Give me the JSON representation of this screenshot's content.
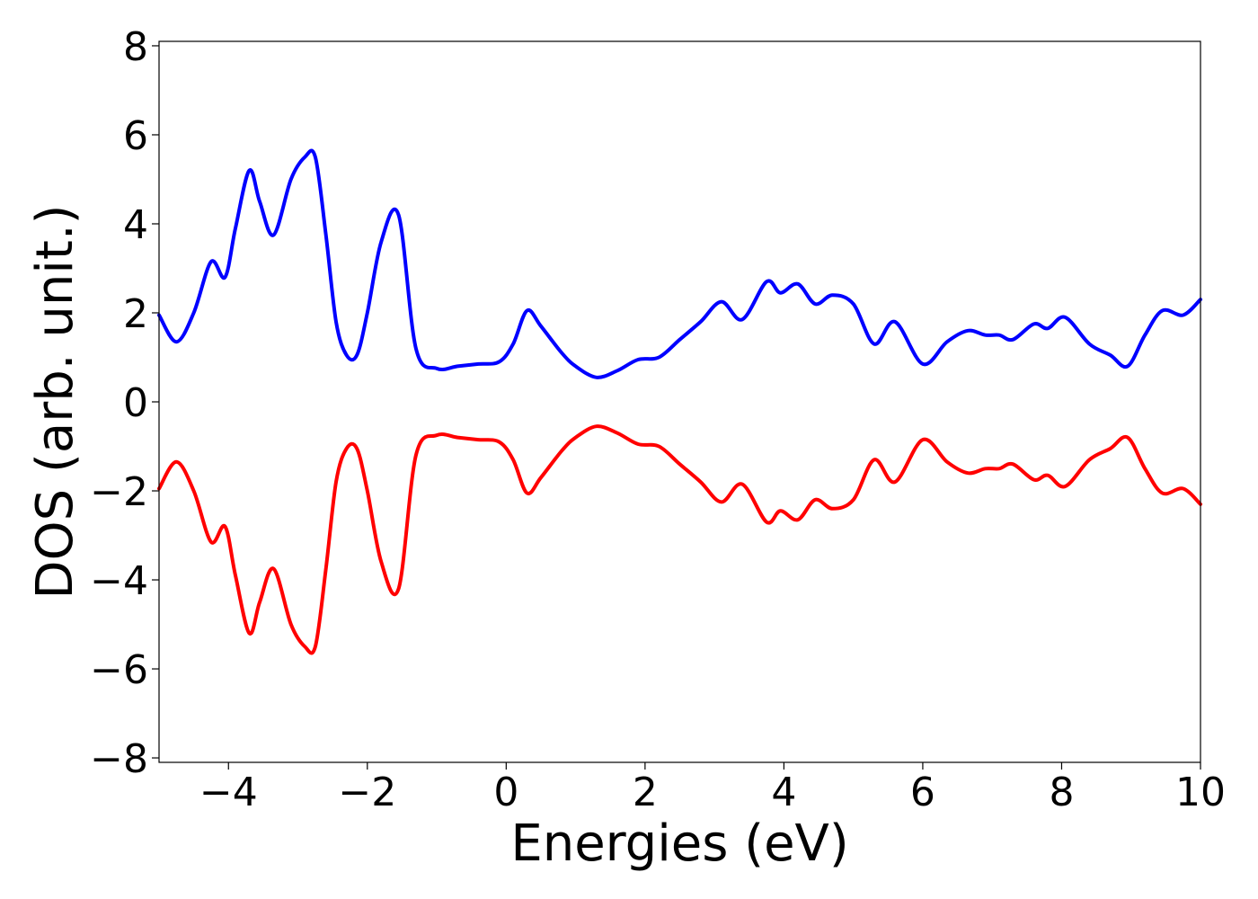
{
  "chart_data": {
    "type": "line",
    "xlabel": "Energies (eV)",
    "ylabel": "DOS (arb. unit.)",
    "xlim": [
      -5,
      10
    ],
    "ylim": [
      -8.1,
      8.1
    ],
    "x_ticks": [
      -4,
      -2,
      0,
      2,
      4,
      6,
      8,
      10
    ],
    "y_ticks": [
      -8,
      -6,
      -4,
      -2,
      0,
      2,
      4,
      6,
      8
    ],
    "x_tick_labels": [
      "−4",
      "−2",
      "0",
      "2",
      "4",
      "6",
      "8",
      "10"
    ],
    "y_tick_labels": [
      "−8",
      "−6",
      "−4",
      "−2",
      "0",
      "2",
      "4",
      "6",
      "8"
    ],
    "grid": false,
    "legend": "none",
    "x": [
      -5.0,
      -4.75,
      -4.5,
      -4.25,
      -4.05,
      -3.9,
      -3.7,
      -3.55,
      -3.35,
      -3.1,
      -2.9,
      -2.75,
      -2.6,
      -2.45,
      -2.3,
      -2.15,
      -2.0,
      -1.8,
      -1.55,
      -1.3,
      -1.0,
      -0.7,
      -0.4,
      -0.1,
      0.1,
      0.3,
      0.5,
      0.8,
      1.0,
      1.3,
      1.6,
      1.9,
      2.2,
      2.5,
      2.8,
      3.1,
      3.4,
      3.75,
      3.95,
      4.2,
      4.45,
      4.7,
      5.0,
      5.3,
      5.6,
      6.0,
      6.35,
      6.65,
      6.9,
      7.1,
      7.3,
      7.6,
      7.8,
      8.05,
      8.4,
      8.7,
      8.95,
      9.2,
      9.45,
      9.75,
      10.0
    ],
    "series": [
      {
        "color": "#0000ff",
        "values": [
          1.95,
          1.35,
          2.0,
          3.15,
          2.8,
          3.9,
          5.2,
          4.5,
          3.75,
          5.0,
          5.5,
          5.5,
          3.8,
          1.8,
          1.05,
          1.05,
          2.0,
          3.6,
          4.2,
          1.2,
          0.75,
          0.8,
          0.85,
          0.9,
          1.3,
          2.05,
          1.7,
          1.1,
          0.8,
          0.55,
          0.7,
          0.95,
          1.0,
          1.4,
          1.8,
          2.25,
          1.85,
          2.7,
          2.45,
          2.65,
          2.2,
          2.4,
          2.2,
          1.3,
          1.8,
          0.85,
          1.35,
          1.6,
          1.5,
          1.5,
          1.4,
          1.75,
          1.65,
          1.9,
          1.3,
          1.05,
          0.8,
          1.5,
          2.05,
          1.95,
          2.3
        ]
      },
      {
        "color": "#ff0000",
        "values": [
          -1.95,
          -1.35,
          -2.0,
          -3.15,
          -2.8,
          -3.9,
          -5.2,
          -4.5,
          -3.75,
          -5.0,
          -5.5,
          -5.5,
          -3.8,
          -1.8,
          -1.05,
          -1.05,
          -2.0,
          -3.6,
          -4.2,
          -1.2,
          -0.75,
          -0.8,
          -0.85,
          -0.9,
          -1.3,
          -2.05,
          -1.7,
          -1.1,
          -0.8,
          -0.55,
          -0.7,
          -0.95,
          -1.0,
          -1.4,
          -1.8,
          -2.25,
          -1.85,
          -2.7,
          -2.45,
          -2.65,
          -2.2,
          -2.4,
          -2.2,
          -1.3,
          -1.8,
          -0.85,
          -1.35,
          -1.6,
          -1.5,
          -1.5,
          -1.4,
          -1.75,
          -1.65,
          -1.9,
          -1.3,
          -1.05,
          -0.8,
          -1.5,
          -2.05,
          -1.95,
          -2.3
        ]
      }
    ]
  }
}
